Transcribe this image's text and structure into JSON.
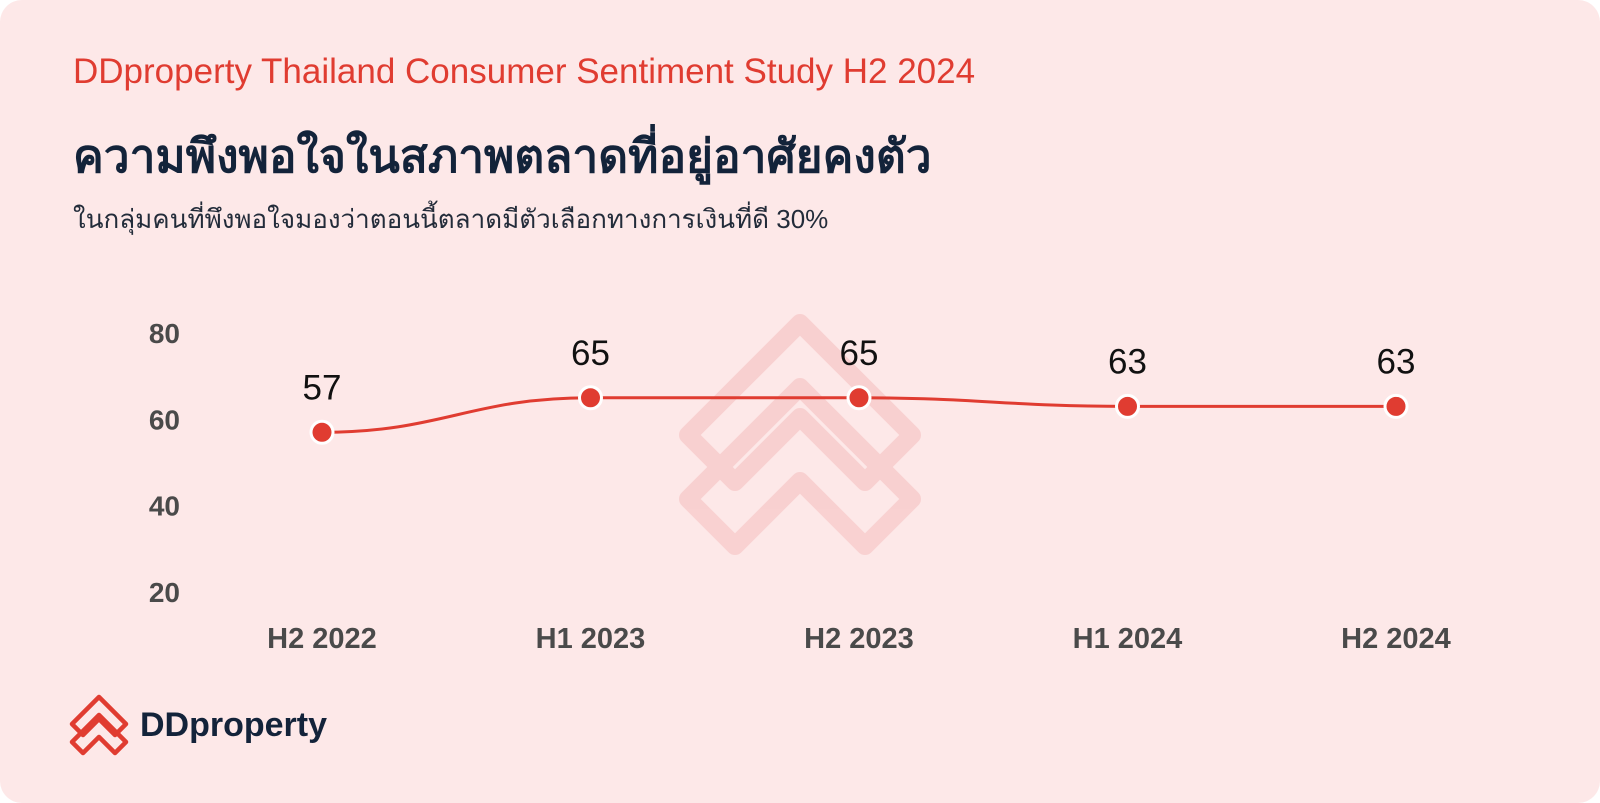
{
  "header": {
    "study_title": "DDproperty Thailand Consumer Sentiment Study H2 2024",
    "title": "ความพึงพอใจในสภาพตลาดที่อยู่อาศัยคงตัว",
    "subtitle": "ในกลุ่มคนที่พึงพอใจมองว่าตอนนี้ตลาดมีตัวเลือกทางการเงินที่ดี 30%"
  },
  "brand": {
    "name": "DDproperty",
    "accent_color": "#e03c31",
    "text_color": "#13233a",
    "background_color": "#fde8e8"
  },
  "chart_data": {
    "type": "line",
    "title": "ความพึงพอใจในสภาพตลาดที่อยู่อาศัยคงตัว",
    "xlabel": "",
    "ylabel": "",
    "categories": [
      "H2 2022",
      "H1 2023",
      "H2 2023",
      "H1 2024",
      "H2 2024"
    ],
    "series": [
      {
        "values": [
          57,
          65,
          65,
          63,
          63
        ],
        "color": "#e03c31"
      }
    ],
    "y_ticks": [
      20,
      40,
      60,
      80
    ],
    "ylim": [
      20,
      80
    ],
    "grid": false,
    "legend": "none",
    "data_labels": true
  }
}
